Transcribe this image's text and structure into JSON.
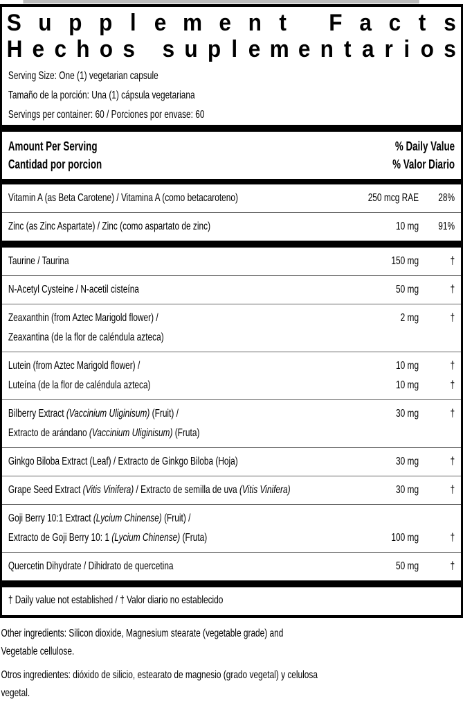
{
  "page": {
    "title_en": "Supplement Facts",
    "title_es": "Hechos suplementarios",
    "serving_info": [
      "Serving Size: One (1) vegetarian capsule",
      "Tamaño de la porción: Una (1) cápsula vegetariana",
      "Servings per container: 60 / Porciones por envase: 60"
    ],
    "column_header": {
      "left_en": "Amount Per Serving",
      "left_es": "Cantidad por porcion",
      "right_en": "% Daily Value",
      "right_es": "% Valor Diario"
    },
    "groups": [
      {
        "rows": [
          {
            "lines": [
              {
                "name": [
                  {
                    "t": "Vitamin A (as Beta Carotene) / Vitamina A (como betacaroteno)"
                  }
                ],
                "amount": "250 mcg RAE",
                "dv": "28%"
              }
            ]
          },
          {
            "lines": [
              {
                "name": [
                  {
                    "t": "Zinc (as Zinc Aspartate) / Zinc (como aspartato de zinc)"
                  }
                ],
                "amount": "10 mg",
                "dv": "91%"
              }
            ]
          }
        ]
      },
      {
        "rows": [
          {
            "lines": [
              {
                "name": [
                  {
                    "t": "Taurine / Taurina"
                  }
                ],
                "amount": "150 mg",
                "dv": "†"
              }
            ]
          },
          {
            "lines": [
              {
                "name": [
                  {
                    "t": "N-Acetyl Cysteine / N-acetil cisteína"
                  }
                ],
                "amount": "50 mg",
                "dv": "†"
              }
            ]
          },
          {
            "lines": [
              {
                "name": [
                  {
                    "t": "Zeaxanthin (from Aztec Marigold flower) /"
                  }
                ],
                "amount": "2 mg",
                "dv": "†"
              },
              {
                "name": [
                  {
                    "t": "Zeaxantina (de la flor de caléndula azteca)"
                  }
                ],
                "amount": "",
                "dv": ""
              }
            ]
          },
          {
            "lines": [
              {
                "name": [
                  {
                    "t": "Lutein (from Aztec Marigold flower) /"
                  }
                ],
                "amount": "10 mg",
                "dv": "†"
              },
              {
                "name": [
                  {
                    "t": "Luteína (de la flor de caléndula azteca)"
                  }
                ],
                "amount": "10 mg",
                "dv": "†"
              }
            ]
          },
          {
            "lines": [
              {
                "name": [
                  {
                    "t": "Bilberry Extract "
                  },
                  {
                    "t": "(Vaccinium Uliginisum)",
                    "i": true
                  },
                  {
                    "t": " (Fruit) /"
                  }
                ],
                "amount": "30 mg",
                "dv": "†"
              },
              {
                "name": [
                  {
                    "t": "Extracto de arándano "
                  },
                  {
                    "t": "(Vaccinium Uliginisum)",
                    "i": true
                  },
                  {
                    "t": " (Fruta)"
                  }
                ],
                "amount": "",
                "dv": ""
              }
            ]
          },
          {
            "lines": [
              {
                "name": [
                  {
                    "t": "Ginkgo Biloba Extract (Leaf) / Extracto de Ginkgo Biloba (Hoja)"
                  }
                ],
                "amount": "30 mg",
                "dv": "†"
              }
            ]
          },
          {
            "lines": [
              {
                "name": [
                  {
                    "t": "Grape Seed Extract "
                  },
                  {
                    "t": "(Vitis Vinifera)",
                    "i": true
                  },
                  {
                    "t": " / Extracto de semilla de uva "
                  },
                  {
                    "t": "(Vitis Vinifera)",
                    "i": true
                  }
                ],
                "amount": "30 mg",
                "dv": "†"
              }
            ]
          },
          {
            "lines": [
              {
                "name": [
                  {
                    "t": "Goji Berry 10:1 Extract "
                  },
                  {
                    "t": "(Lycium Chinense)",
                    "i": true
                  },
                  {
                    "t": " (Fruit) /"
                  }
                ],
                "amount": "",
                "dv": ""
              },
              {
                "name": [
                  {
                    "t": "Extracto de Goji Berry 10: 1 "
                  },
                  {
                    "t": "(Lycium Chinense)",
                    "i": true
                  },
                  {
                    "t": " (Fruta)"
                  }
                ],
                "amount": "100 mg",
                "dv": "†"
              }
            ]
          },
          {
            "lines": [
              {
                "name": [
                  {
                    "t": "Quercetin Dihydrate / Dihidrato de quercetina"
                  }
                ],
                "amount": "50 mg",
                "dv": "†"
              }
            ]
          }
        ]
      }
    ],
    "footnote": "† Daily value not established  / † Valor diario no establecido",
    "other_ingredients": {
      "en_lines": [
        "Other ingredients: Silicon dioxide, Magnesium stearate (vegetable grade) and",
        "Vegetable cellulose."
      ],
      "es_lines": [
        "Otros ingredientes: dióxido de silicio, estearato de magnesio (grado vegetal) y celulosa",
        "vegetal."
      ]
    }
  }
}
